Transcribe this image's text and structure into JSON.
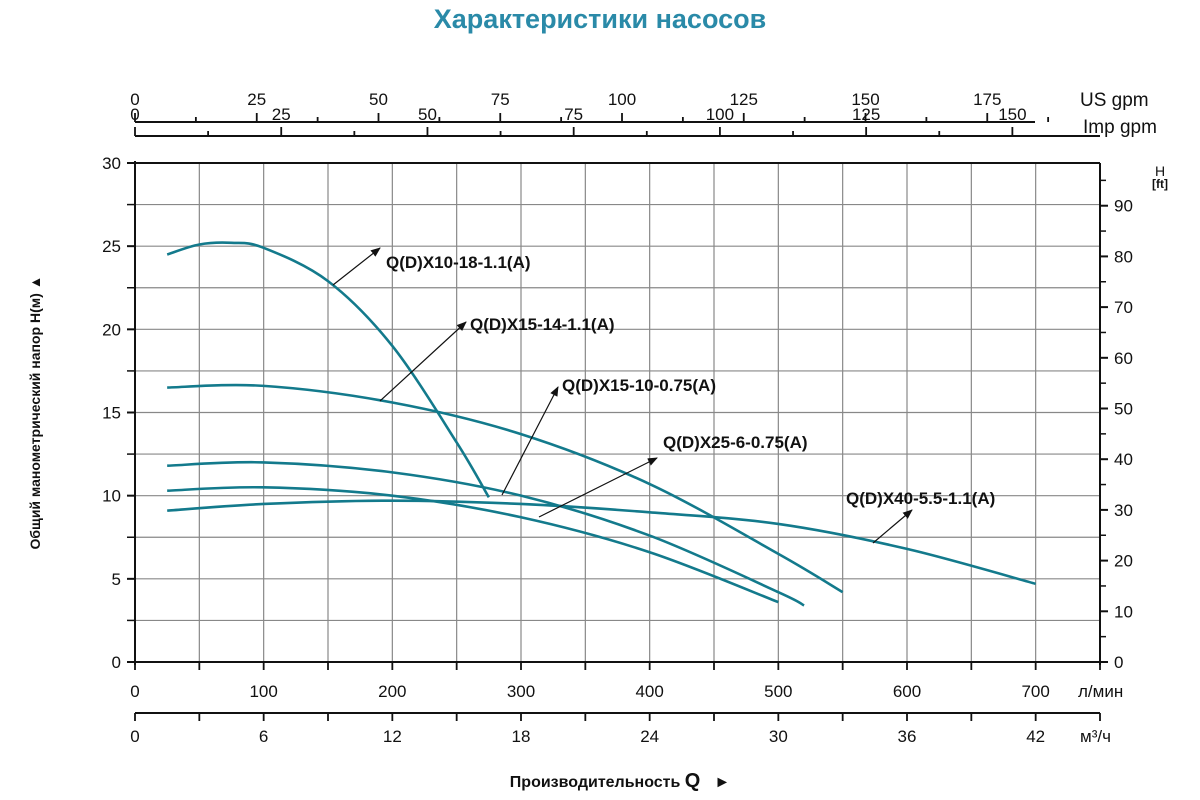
{
  "title": "Характеристики насосов",
  "colors": {
    "title": "#2a8aa8",
    "curve": "#137a8c",
    "grid": "#888888",
    "axis": "#111111"
  },
  "axes": {
    "top_us": {
      "unit": "US gpm",
      "ticks": [
        "0",
        "25",
        "50",
        "75",
        "100",
        "125",
        "150",
        "175"
      ]
    },
    "top_imp": {
      "unit": "Imp gpm",
      "ticks": [
        "0",
        "25",
        "50",
        "75",
        "100",
        "125",
        "150"
      ]
    },
    "left": {
      "label": "Общий манометрический напор H(м)",
      "arrow": "▲",
      "ticks": [
        "0",
        "5",
        "10",
        "15",
        "20",
        "25",
        "30"
      ]
    },
    "right": {
      "label_line1": "H",
      "label_line2": "[ft]",
      "ticks": [
        "0",
        "10",
        "20",
        "30",
        "40",
        "50",
        "60",
        "70",
        "80",
        "90"
      ]
    },
    "bottom_lmin": {
      "unit": "л/мин",
      "ticks": [
        "0",
        "100",
        "200",
        "300",
        "400",
        "500",
        "600",
        "700"
      ]
    },
    "bottom_m3h": {
      "unit": "м³/ч",
      "ticks": [
        "0",
        "6",
        "12",
        "18",
        "24",
        "30",
        "36",
        "42"
      ]
    },
    "xlabel": "Производительность",
    "xlabel_q": "Q",
    "xlabel_arrow": "►"
  },
  "labels": [
    {
      "text": "Q(D)X10-18-1.1(A)"
    },
    {
      "text": "Q(D)X15-14-1.1(A)"
    },
    {
      "text": "Q(D)X15-10-0.75(A)"
    },
    {
      "text": "Q(D)X25-6-0.75(A)"
    },
    {
      "text": "Q(D)X40-5.5-1.1(A)"
    }
  ],
  "chart_data": {
    "type": "line",
    "title": "Характеристики насосов",
    "xlabel": "Производительность Q (л/мин)",
    "ylabel": "Общий манометрический напор H(м)",
    "xlim": [
      0,
      750
    ],
    "ylim": [
      0,
      30
    ],
    "secondary_axes": {
      "top_us_gpm": [
        0,
        25,
        50,
        75,
        100,
        125,
        150,
        175
      ],
      "top_imp_gpm": [
        0,
        25,
        50,
        75,
        100,
        125,
        150
      ],
      "bottom_m3h": [
        0,
        6,
        12,
        18,
        24,
        30,
        36,
        42
      ],
      "right_ft": [
        0,
        10,
        20,
        30,
        40,
        50,
        60,
        70,
        80,
        90
      ]
    },
    "grid": true,
    "series": [
      {
        "name": "Q(D)X10-18-1.1(A)",
        "x": [
          25,
          50,
          75,
          100,
          150,
          200,
          250,
          275
        ],
        "y": [
          24.5,
          25.1,
          25.2,
          24.9,
          22.9,
          19.0,
          13.2,
          9.9
        ]
      },
      {
        "name": "Q(D)X15-14-1.1(A)",
        "x": [
          25,
          100,
          200,
          300,
          400,
          500,
          550
        ],
        "y": [
          16.5,
          16.6,
          15.6,
          13.7,
          10.7,
          6.5,
          4.2
        ]
      },
      {
        "name": "Q(D)X15-10-0.75(A)",
        "x": [
          25,
          100,
          200,
          300,
          400,
          500,
          520
        ],
        "y": [
          11.8,
          12.0,
          11.4,
          10.0,
          7.6,
          4.2,
          3.4
        ]
      },
      {
        "name": "Q(D)X25-6-0.75(A)",
        "x": [
          25,
          100,
          200,
          300,
          400,
          500
        ],
        "y": [
          10.3,
          10.5,
          10.0,
          8.7,
          6.6,
          3.6
        ]
      },
      {
        "name": "Q(D)X40-5.5-1.1(A)",
        "x": [
          25,
          100,
          200,
          300,
          400,
          500,
          600,
          700
        ],
        "y": [
          9.1,
          9.5,
          9.7,
          9.5,
          9.0,
          8.3,
          6.8,
          4.7
        ]
      }
    ]
  }
}
